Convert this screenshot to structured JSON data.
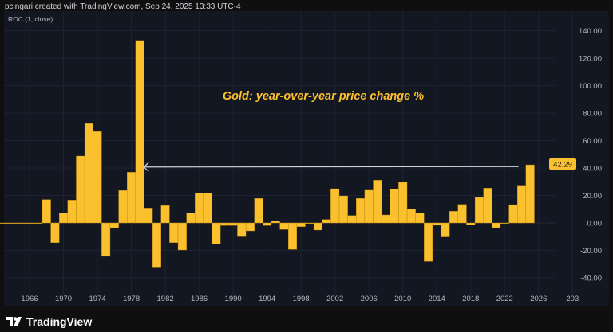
{
  "header": {
    "credit": "pcingari created with TradingView.com, Sep 24, 2025 13:33 UTC-4"
  },
  "indicator": {
    "label": "ROC (1, close)"
  },
  "brand": {
    "name": "TradingView"
  },
  "colors": {
    "bar": "#fbc02d",
    "background": "#131722",
    "arrow": "#d1d4dc",
    "title": "#fbc02d"
  },
  "chart_data": {
    "type": "bar",
    "title": "Gold: year-over-year price change %",
    "xlabel": "",
    "ylabel": "",
    "ylim": [
      -50,
      150
    ],
    "grid": true,
    "x": [
      1963,
      1964,
      1965,
      1966,
      1967,
      1968,
      1969,
      1970,
      1971,
      1972,
      1973,
      1974,
      1975,
      1976,
      1977,
      1978,
      1979,
      1980,
      1981,
      1982,
      1983,
      1984,
      1985,
      1986,
      1987,
      1988,
      1989,
      1990,
      1991,
      1992,
      1993,
      1994,
      1995,
      1996,
      1997,
      1998,
      1999,
      2000,
      2001,
      2002,
      2003,
      2004,
      2005,
      2006,
      2007,
      2008,
      2009,
      2010,
      2011,
      2012,
      2013,
      2014,
      2015,
      2016,
      2017,
      2018,
      2019,
      2020,
      2021,
      2022,
      2023,
      2024,
      2025
    ],
    "values": [
      0,
      0,
      0,
      0,
      0,
      17.0,
      -14.3,
      7.1,
      16.6,
      48.7,
      72.3,
      66.5,
      -24.3,
      -3.5,
      23.6,
      36.9,
      132.8,
      10.8,
      -32.1,
      12.6,
      -14.3,
      -19.7,
      7.1,
      21.6,
      21.6,
      -15.5,
      -1.9,
      -1.9,
      -10.0,
      -5.8,
      17.8,
      -1.9,
      1.4,
      -4.8,
      -19.3,
      -2.7,
      0,
      -5.2,
      2.5,
      24.9,
      19.7,
      5.4,
      17.8,
      23.8,
      31.1,
      5.8,
      24.7,
      29.6,
      10.2,
      7.3,
      -28.0,
      -1.7,
      -10.2,
      8.5,
      13.5,
      -1.5,
      18.6,
      25.3,
      -3.5,
      -0.4,
      13.3,
      27.4,
      42.29
    ],
    "x_tick_labels": [
      "1966",
      "1970",
      "1974",
      "1978",
      "1982",
      "1986",
      "1990",
      "1994",
      "1998",
      "2002",
      "2006",
      "2010",
      "2014",
      "2018",
      "2022",
      "2026",
      "203"
    ],
    "y_tick_labels": [
      "140.00",
      "120.00",
      "100.00",
      "80.00",
      "60.00",
      "40.00",
      "20.00",
      "0.00",
      "-20.00",
      "-40.00"
    ],
    "last_value_label": "42.29",
    "annotations": [
      {
        "type": "arrow",
        "from_year": 2024,
        "to_year": 1979,
        "value": 41
      }
    ]
  }
}
